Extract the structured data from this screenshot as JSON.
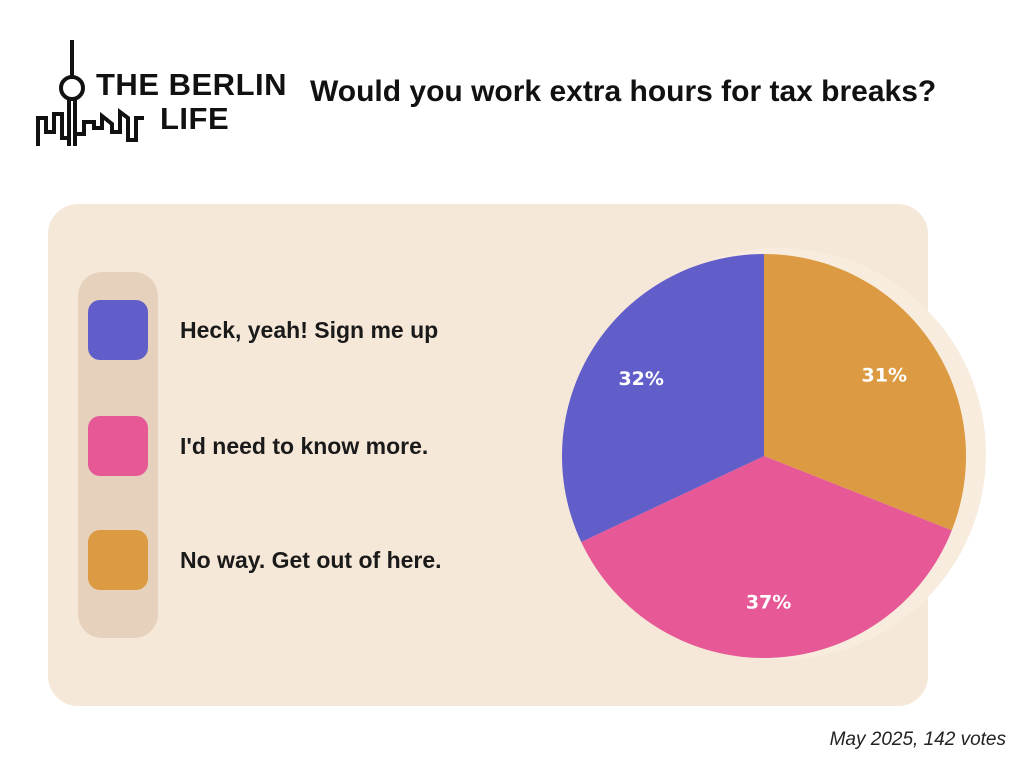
{
  "brand": {
    "line1": "THE BERLIN",
    "line2": "LIFE"
  },
  "icons": {
    "logo": "berlin-tv-tower-skyline-icon"
  },
  "chart_data": {
    "type": "pie",
    "title": "Would you work extra hours for tax breaks?",
    "categories": [
      "Heck, yeah! Sign me up",
      "I'd need to know more.",
      "No way. Get out of here."
    ],
    "values": [
      32,
      37,
      31
    ],
    "labels": [
      "32%",
      "37%",
      "31%"
    ],
    "colors": [
      "#615ec9",
      "#e65896",
      "#dc9b43"
    ],
    "legend_position": "left",
    "note": "May 2025, 142 votes"
  }
}
